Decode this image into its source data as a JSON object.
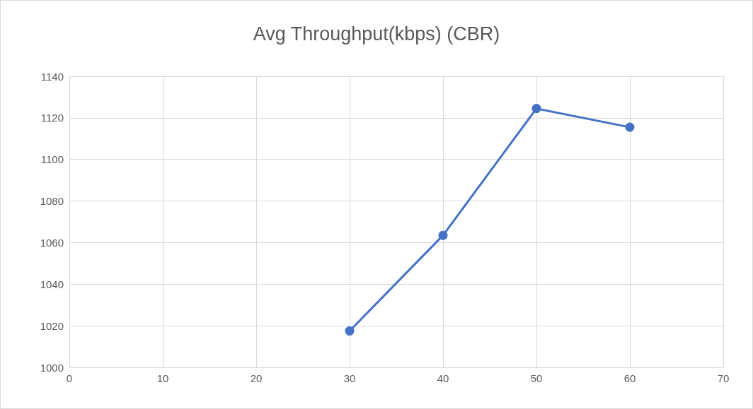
{
  "chart_data": {
    "type": "line",
    "title": "Avg Throughput(kbps) (CBR)",
    "x": [
      30,
      40,
      50,
      60
    ],
    "series": [
      {
        "color": "#4472c4",
        "values": [
          1017.5,
          1063.5,
          1124.5,
          1115.5
        ]
      }
    ],
    "xlim": [
      0,
      70
    ],
    "xticks": [
      0,
      10,
      20,
      30,
      40,
      50,
      60,
      70
    ],
    "ylim": [
      1000,
      1140
    ],
    "yticks": [
      1000,
      1020,
      1040,
      1060,
      1080,
      1100,
      1120,
      1140
    ],
    "grid": true,
    "marker": "circle",
    "line_style": "solid"
  }
}
